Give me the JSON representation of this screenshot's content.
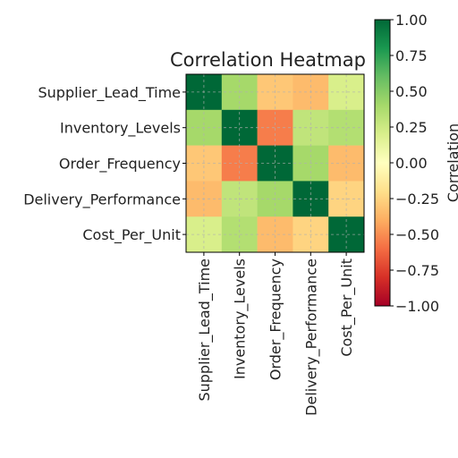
{
  "chart_data": {
    "type": "heatmap",
    "title": "Correlation Heatmap",
    "row_labels": [
      "Supplier_Lead_Time",
      "Inventory_Levels",
      "Order_Frequency",
      "Delivery_Performance",
      "Cost_Per_Unit"
    ],
    "col_labels": [
      "Supplier_Lead_Time",
      "Inventory_Levels",
      "Order_Frequency",
      "Delivery_Performance",
      "Cost_Per_Unit"
    ],
    "values": [
      [
        1.0,
        0.4,
        -0.3,
        -0.35,
        0.2
      ],
      [
        0.4,
        1.0,
        -0.55,
        0.3,
        0.35
      ],
      [
        -0.3,
        -0.55,
        1.0,
        0.4,
        -0.35
      ],
      [
        -0.35,
        0.3,
        0.4,
        1.0,
        -0.25
      ],
      [
        0.2,
        0.35,
        -0.35,
        -0.25,
        1.0
      ]
    ],
    "colorbar": {
      "label": "Correlation",
      "colormap": "RdYlGn",
      "vmin": -1.0,
      "vmax": 1.0,
      "ticks": [
        "1.00",
        "0.75",
        "0.50",
        "0.25",
        "0.00",
        "−0.25",
        "−0.50",
        "−0.75",
        "−1.00"
      ]
    },
    "grid": true
  }
}
